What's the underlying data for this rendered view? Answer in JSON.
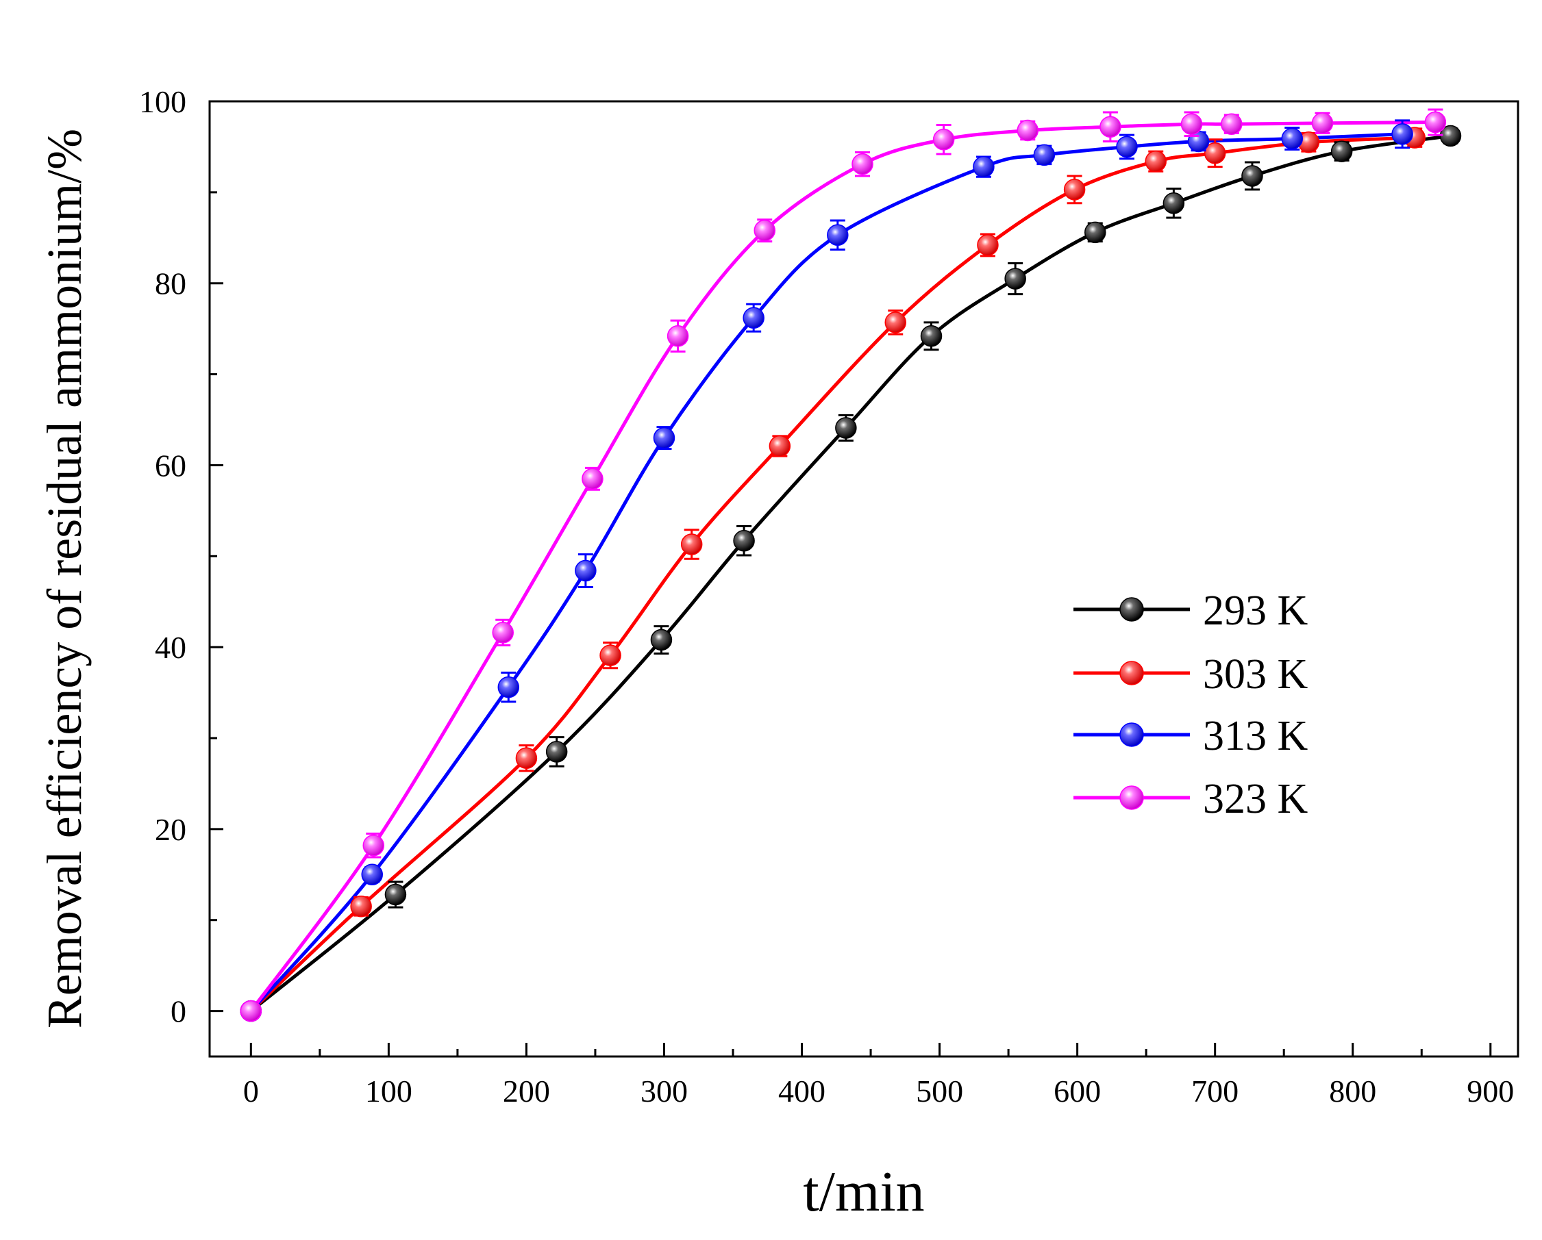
{
  "chart_data": {
    "type": "line",
    "title": "",
    "xlabel": "t/min",
    "ylabel": "Removal efficiency of residual ammonium/%",
    "xlim": [
      -30,
      920
    ],
    "ylim": [
      -5,
      100
    ],
    "xticks": [
      0,
      100,
      200,
      300,
      400,
      500,
      600,
      700,
      800,
      900
    ],
    "yticks": [
      0,
      20,
      40,
      60,
      80,
      100
    ],
    "xtick_labels": [
      "0",
      "100",
      "200",
      "300",
      "400",
      "500",
      "600",
      "700",
      "800",
      "900"
    ],
    "ytick_labels": [
      "0",
      "20",
      "40",
      "60",
      "80",
      "100"
    ],
    "grid": false,
    "legend_position": "center-right",
    "series": [
      {
        "name": "293 K",
        "color": "#000000",
        "x": [
          0,
          105,
          222,
          298,
          358,
          432,
          494,
          555,
          613,
          670,
          727,
          792,
          871
        ],
        "y": [
          0,
          12.8,
          28.5,
          40.8,
          51.7,
          64.1,
          74.2,
          80.5,
          85.6,
          88.8,
          91.8,
          94.5,
          96.2
        ],
        "err": [
          0.6,
          1.4,
          1.6,
          1.5,
          1.6,
          1.4,
          1.5,
          1.7,
          1.0,
          1.6,
          1.5,
          1.0,
          0.8
        ]
      },
      {
        "name": "303 K",
        "color": "#ff0000",
        "x": [
          0,
          80,
          200,
          261,
          320,
          384,
          468,
          535,
          598,
          657,
          700,
          768,
          845
        ],
        "y": [
          0,
          11.5,
          27.8,
          39.1,
          51.3,
          62.1,
          75.7,
          84.2,
          90.3,
          93.4,
          94.3,
          95.5,
          96.0
        ],
        "err": [
          0.6,
          1.0,
          1.4,
          1.4,
          1.6,
          1.1,
          1.3,
          1.2,
          1.5,
          1.1,
          1.5,
          1.0,
          1.0
        ]
      },
      {
        "name": "313 K",
        "color": "#0000ff",
        "x": [
          0,
          88,
          187,
          243,
          300,
          365,
          426,
          532,
          576,
          636,
          688,
          756,
          836
        ],
        "y": [
          0,
          15.0,
          35.6,
          48.4,
          63.0,
          76.2,
          85.3,
          92.8,
          94.1,
          95.0,
          95.6,
          95.9,
          96.4
        ],
        "err": [
          0.6,
          0.8,
          1.6,
          1.8,
          1.2,
          1.5,
          1.6,
          1.1,
          1.0,
          1.3,
          1.0,
          1.2,
          1.5
        ]
      },
      {
        "name": "323 K",
        "color": "#ff00ff",
        "x": [
          0,
          89,
          183,
          248,
          310,
          373,
          444,
          503,
          564,
          624,
          683,
          712,
          778,
          860
        ],
        "y": [
          0,
          18.2,
          41.6,
          58.5,
          74.2,
          85.8,
          93.1,
          95.8,
          96.8,
          97.2,
          97.5,
          97.5,
          97.6,
          97.7
        ],
        "err": [
          0.6,
          1.3,
          1.4,
          1.2,
          1.7,
          1.2,
          1.3,
          1.6,
          1.0,
          1.6,
          1.3,
          1.0,
          1.1,
          1.4
        ]
      }
    ]
  }
}
